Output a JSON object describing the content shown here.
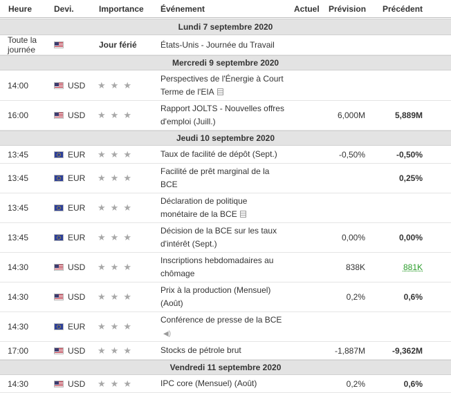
{
  "header": {
    "time": "Heure",
    "currency": "Devi.",
    "importance": "Importance",
    "event": "Événement",
    "actual": "Actuel",
    "forecast": "Prévision",
    "previous": "Précédent"
  },
  "days": [
    "Lundi 7 septembre 2020",
    "Mercredi 9 septembre 2020",
    "Jeudi 10 septembre 2020",
    "Vendredi 11 septembre 2020"
  ],
  "rows": [
    {
      "time": "Toute la journée",
      "flag": "us-flag-icon",
      "currency": "",
      "importance_text": "Jour férié",
      "event": "États-Unis - Journée du Travail",
      "forecast": "",
      "previous": ""
    },
    {
      "time": "14:00",
      "flag": "us-flag-icon",
      "currency": "USD",
      "event": "Perspectives de l'Énergie à Court Terme de l'EIA",
      "event_icon": "document-icon",
      "forecast": "",
      "previous": ""
    },
    {
      "time": "16:00",
      "flag": "us-flag-icon",
      "currency": "USD",
      "event": "Rapport JOLTS - Nouvelles offres d'emploi (Juill.)",
      "forecast": "6,000M",
      "previous": "5,889M"
    },
    {
      "time": "13:45",
      "flag": "eu-flag-icon",
      "currency": "EUR",
      "event": "Taux de facilité de dépôt (Sept.)",
      "forecast": "-0,50%",
      "previous": "-0,50%"
    },
    {
      "time": "13:45",
      "flag": "eu-flag-icon",
      "currency": "EUR",
      "event": "Facilité de prêt marginal de la BCE",
      "forecast": "",
      "previous": "0,25%"
    },
    {
      "time": "13:45",
      "flag": "eu-flag-icon",
      "currency": "EUR",
      "event": "Déclaration de politique monétaire de la BCE",
      "event_icon": "document-icon",
      "forecast": "",
      "previous": ""
    },
    {
      "time": "13:45",
      "flag": "eu-flag-icon",
      "currency": "EUR",
      "event": "Décision de la BCE sur les taux d'intérêt (Sept.)",
      "forecast": "0,00%",
      "previous": "0,00%"
    },
    {
      "time": "14:30",
      "flag": "us-flag-icon",
      "currency": "USD",
      "event": "Inscriptions hebdomadaires au chômage",
      "forecast": "838K",
      "previous": "881K",
      "previous_color": "#2a9d2a"
    },
    {
      "time": "14:30",
      "flag": "us-flag-icon",
      "currency": "USD",
      "event": "Prix à la production (Mensuel) (Août)",
      "forecast": "0,2%",
      "previous": "0,6%"
    },
    {
      "time": "14:30",
      "flag": "eu-flag-icon",
      "currency": "EUR",
      "event": "Conférence de presse de la BCE",
      "event_icon": "speaker-icon",
      "forecast": "",
      "previous": ""
    },
    {
      "time": "17:00",
      "flag": "us-flag-icon",
      "currency": "USD",
      "event": "Stocks de pétrole brut",
      "forecast": "-1,887M",
      "previous": "-9,362M"
    },
    {
      "time": "14:30",
      "flag": "us-flag-icon",
      "currency": "USD",
      "event": "IPC core (Mensuel) (Août)",
      "forecast": "0,2%",
      "previous": "0,6%"
    }
  ],
  "star_icon": "star-icon",
  "colors": {
    "day_header_bg": "#e3e3e3",
    "star": "#a8a8a8",
    "previous_better": "#2a9d2a"
  }
}
